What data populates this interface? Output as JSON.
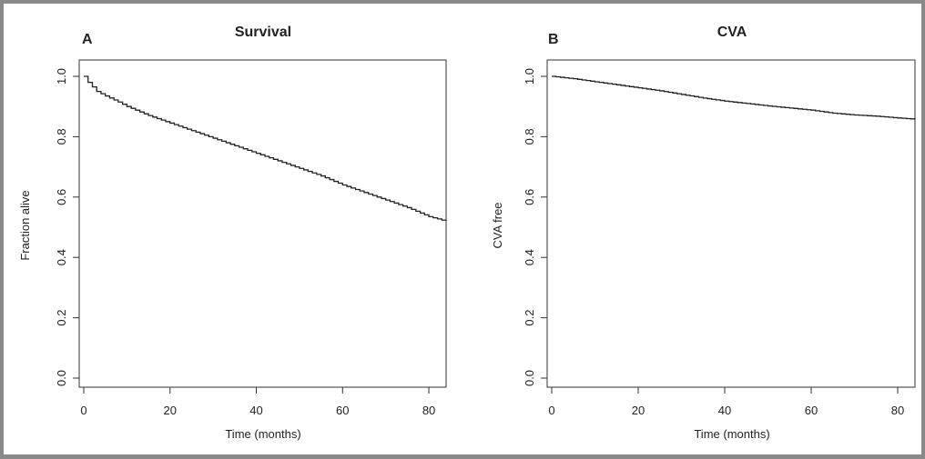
{
  "chart_data": [
    {
      "type": "line",
      "step": true,
      "panel_label": "A",
      "title": "Survival",
      "xlabel": "Time (months)",
      "ylabel": "Fraction alive",
      "xlim": [
        0,
        84
      ],
      "ylim": [
        0,
        1
      ],
      "xticks": [
        "0",
        "20",
        "40",
        "60",
        "80"
      ],
      "yticks": [
        "0.0",
        "0.2",
        "0.4",
        "0.6",
        "0.8",
        "1.0"
      ],
      "grid": false,
      "series": [
        {
          "x": [
            0,
            1,
            2,
            3,
            5,
            8,
            10,
            15,
            20,
            25,
            30,
            35,
            40,
            45,
            50,
            55,
            60,
            65,
            70,
            75,
            80,
            84
          ],
          "y": [
            1.0,
            0.98,
            0.965,
            0.95,
            0.935,
            0.915,
            0.9,
            0.87,
            0.845,
            0.82,
            0.795,
            0.77,
            0.745,
            0.72,
            0.695,
            0.67,
            0.64,
            0.615,
            0.59,
            0.565,
            0.535,
            0.52
          ]
        }
      ]
    },
    {
      "type": "line",
      "step": true,
      "panel_label": "B",
      "title": "CVA",
      "xlabel": "Time (months)",
      "ylabel": "CVA free",
      "xlim": [
        0,
        84
      ],
      "ylim": [
        0,
        1
      ],
      "xticks": [
        "0",
        "20",
        "40",
        "60",
        "80"
      ],
      "yticks": [
        "0.0",
        "0.2",
        "0.4",
        "0.6",
        "0.8",
        "1.0"
      ],
      "grid": false,
      "series": [
        {
          "x": [
            0,
            5,
            10,
            15,
            20,
            25,
            30,
            35,
            40,
            45,
            50,
            55,
            60,
            65,
            70,
            75,
            80,
            84
          ],
          "y": [
            1.0,
            0.992,
            0.982,
            0.972,
            0.962,
            0.952,
            0.94,
            0.928,
            0.918,
            0.91,
            0.902,
            0.895,
            0.888,
            0.878,
            0.872,
            0.868,
            0.862,
            0.858
          ]
        }
      ]
    }
  ]
}
